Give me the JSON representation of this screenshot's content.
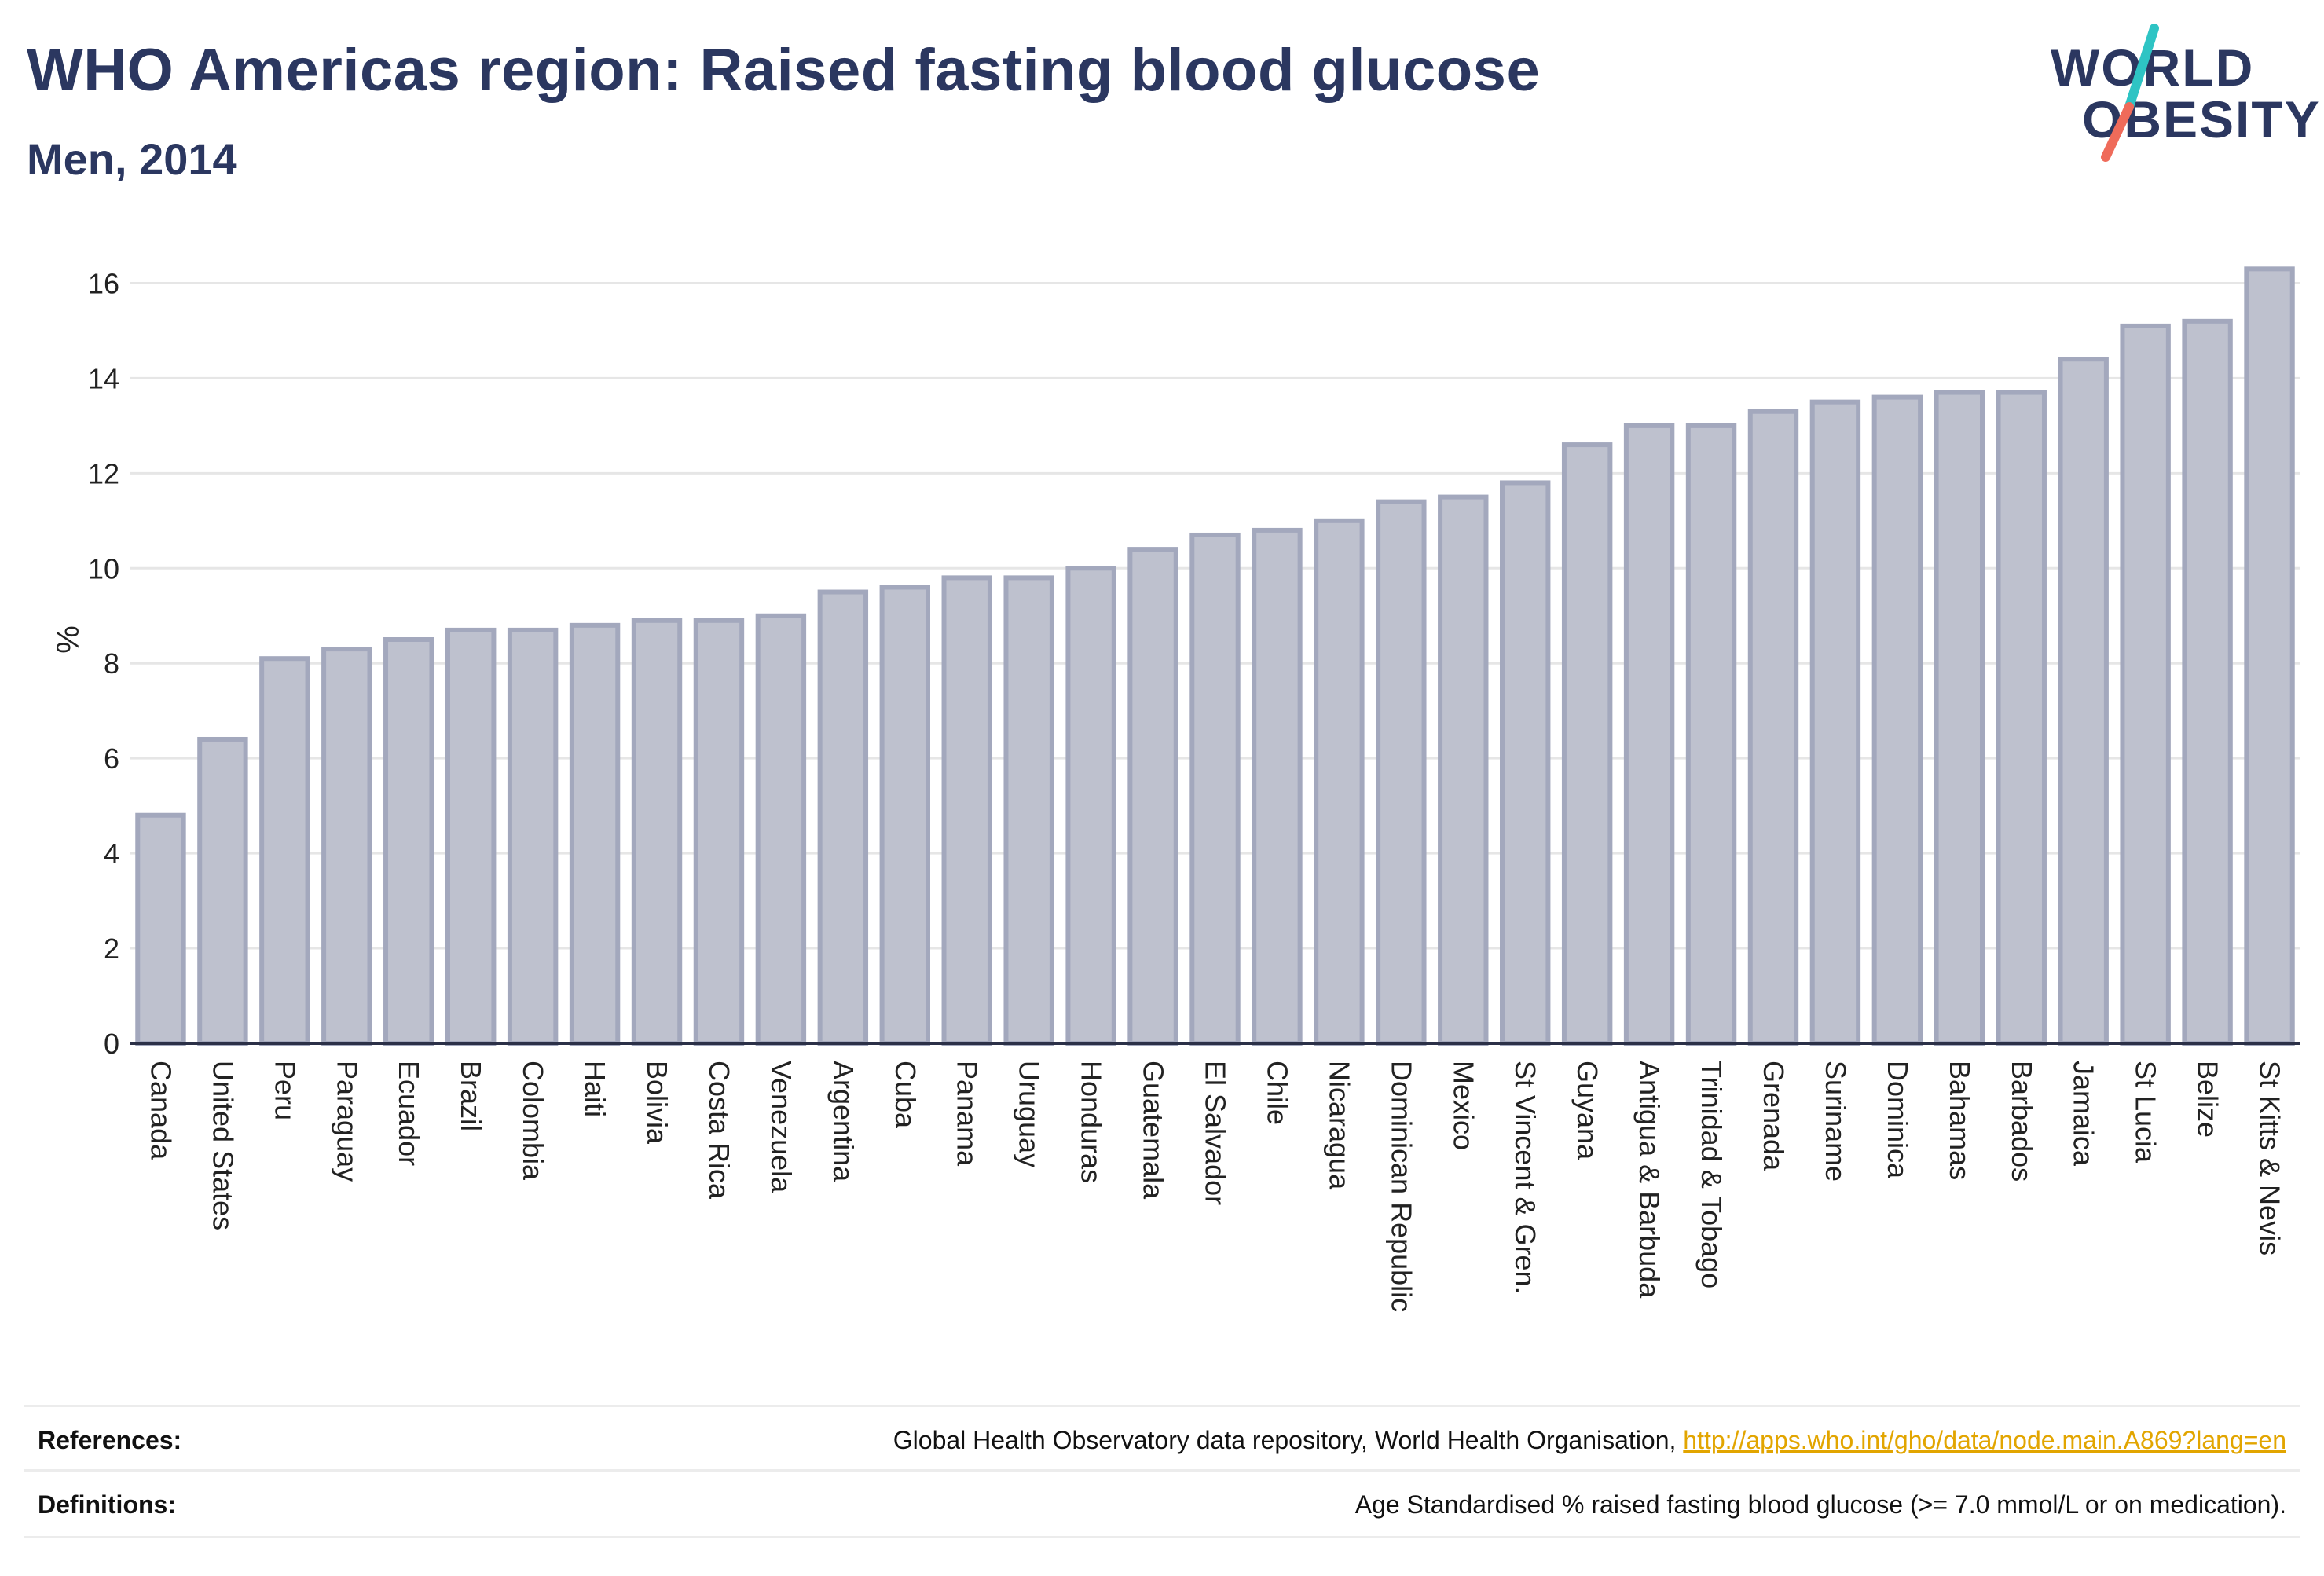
{
  "header": {
    "title": "WHO Americas region: Raised fasting blood glucose",
    "subtitle": "Men, 2014",
    "logo_line1": "WORLD",
    "logo_line2": "OBESITY"
  },
  "colors": {
    "bar_fill": "#bec1ce",
    "bar_stroke": "#a3a8bd",
    "title": "#2b3760",
    "link": "#e2a500",
    "logo_teal": "#2ec4c4",
    "logo_coral": "#ef6b5a",
    "gridline": "#e6e6e6"
  },
  "chart_data": {
    "type": "bar",
    "title": "WHO Americas region: Raised fasting blood glucose",
    "subtitle": "Men, 2014",
    "xlabel": "",
    "ylabel": "%",
    "ylim": [
      0,
      17
    ],
    "yticks": [
      0,
      2,
      4,
      6,
      8,
      10,
      12,
      14,
      16
    ],
    "grid": true,
    "categories": [
      "Canada",
      "United States",
      "Peru",
      "Paraguay",
      "Ecuador",
      "Brazil",
      "Colombia",
      "Haiti",
      "Bolivia",
      "Costa Rica",
      "Venezuela",
      "Argentina",
      "Cuba",
      "Panama",
      "Uruguay",
      "Honduras",
      "Guatemala",
      "El Salvador",
      "Chile",
      "Nicaragua",
      "Dominican Republic",
      "Mexico",
      "St Vincent & Gren.",
      "Guyana",
      "Antigua & Barbuda",
      "Trinidad & Tobago",
      "Grenada",
      "Suriname",
      "Dominica",
      "Bahamas",
      "Barbados",
      "Jamaica",
      "St Lucia",
      "Belize",
      "St Kitts & Nevis"
    ],
    "values": [
      4.8,
      6.4,
      8.1,
      8.3,
      8.5,
      8.7,
      8.7,
      8.8,
      8.9,
      8.9,
      9.0,
      9.5,
      9.6,
      9.8,
      9.8,
      10.0,
      10.4,
      10.7,
      10.8,
      11.0,
      11.4,
      11.5,
      11.8,
      12.6,
      13.0,
      13.0,
      13.3,
      13.5,
      13.6,
      13.7,
      13.7,
      14.4,
      15.1,
      15.2,
      16.3
    ]
  },
  "footer": {
    "references_label": "References:",
    "references_text": "Global Health Observatory data repository, World Health Organisation, ",
    "references_link": "http://apps.who.int/gho/data/node.main.A869?lang=en",
    "definitions_label": "Definitions:",
    "definitions_text": "Age Standardised % raised fasting blood glucose (>= 7.0 mmol/L or on medication)."
  }
}
